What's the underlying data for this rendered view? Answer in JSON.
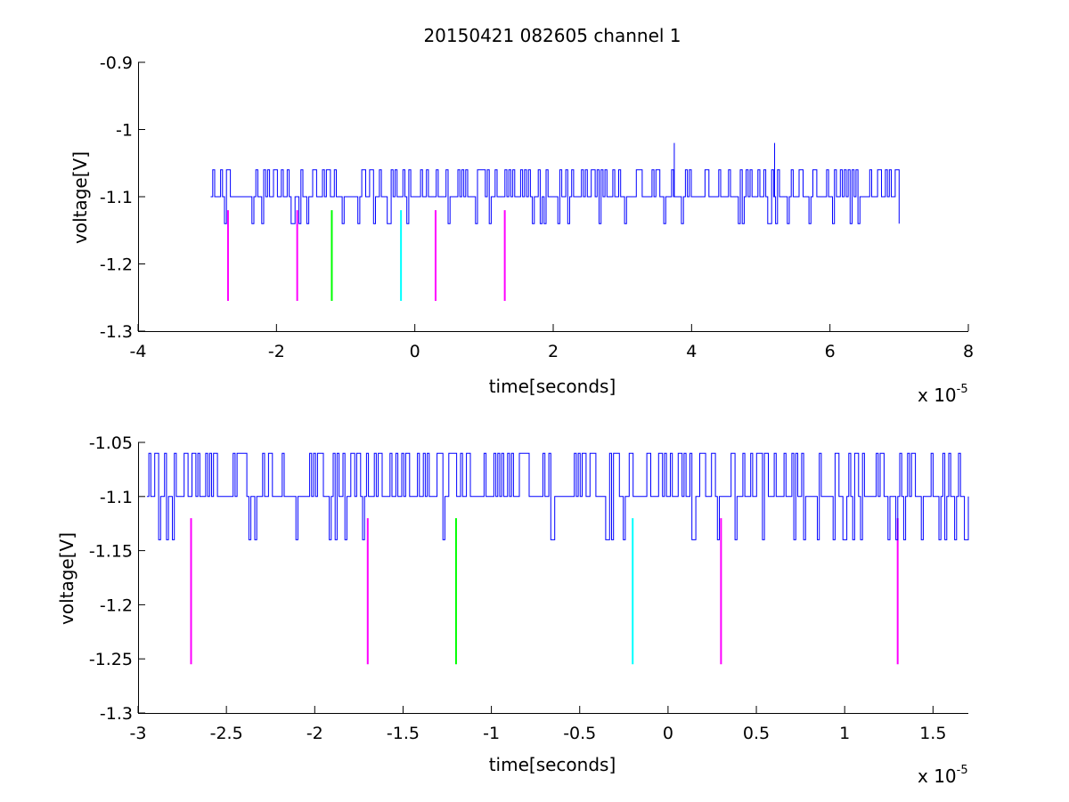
{
  "chart_data": [
    {
      "type": "line",
      "title": "20150421 082605 channel 1",
      "xlabel": "time[seconds]",
      "ylabel": "voltage[V]",
      "x_multiplier_label": "x 10",
      "x_multiplier_exponent": "-5",
      "xlim": [
        -4,
        8
      ],
      "ylim": [
        -1.3,
        -0.9
      ],
      "x_ticks": [
        -4,
        -2,
        0,
        2,
        4,
        6,
        8
      ],
      "x_tick_labels": [
        "-4",
        "-2",
        "0",
        "2",
        "4",
        "6",
        "8"
      ],
      "y_ticks": [
        -1.3,
        -1.2,
        -1.1,
        -1.0,
        -0.9
      ],
      "y_tick_labels": [
        "-1.3",
        "-1.2",
        "-1.1",
        "-1",
        "-0.9"
      ],
      "grid": false,
      "series": [
        {
          "kind": "signal",
          "color": "#0000ff",
          "x_range": [
            -2.95,
            7.0
          ],
          "baseline": -1.1,
          "levels": [
            -1.14,
            -1.1,
            -1.06,
            -1.02
          ],
          "seed": 7,
          "spikes": [
            {
              "x": 3.75,
              "y": -1.02
            },
            {
              "x": 5.2,
              "y": -1.02
            }
          ]
        }
      ],
      "markers": [
        {
          "x": -2.7,
          "y_top": -1.12,
          "y_bottom": -1.255,
          "color": "#ff00ff"
        },
        {
          "x": -1.7,
          "y_top": -1.12,
          "y_bottom": -1.255,
          "color": "#ff00ff"
        },
        {
          "x": -1.2,
          "y_top": -1.12,
          "y_bottom": -1.255,
          "color": "#00ff00"
        },
        {
          "x": -0.2,
          "y_top": -1.12,
          "y_bottom": -1.255,
          "color": "#00ffff"
        },
        {
          "x": 0.3,
          "y_top": -1.12,
          "y_bottom": -1.255,
          "color": "#ff00ff"
        },
        {
          "x": 1.3,
          "y_top": -1.12,
          "y_bottom": -1.255,
          "color": "#ff00ff"
        }
      ]
    },
    {
      "type": "line",
      "title": "",
      "xlabel": "time[seconds]",
      "ylabel": "voltage[V]",
      "x_multiplier_label": "x 10",
      "x_multiplier_exponent": "-5",
      "xlim": [
        -3.0,
        1.7
      ],
      "ylim": [
        -1.3,
        -1.05
      ],
      "x_ticks": [
        -3,
        -2.5,
        -2,
        -1.5,
        -1,
        -0.5,
        0,
        0.5,
        1,
        1.5
      ],
      "x_tick_labels": [
        "-3",
        "-2.5",
        "-2",
        "-1.5",
        "-1",
        "-0.5",
        "0",
        "0.5",
        "1",
        "1.5"
      ],
      "y_ticks": [
        -1.3,
        -1.25,
        -1.2,
        -1.15,
        -1.1,
        -1.05
      ],
      "y_tick_labels": [
        "-1.3",
        "-1.25",
        "-1.2",
        "-1.15",
        "-1.1",
        "-1.05"
      ],
      "grid": false,
      "series": [
        {
          "kind": "signal",
          "color": "#0000ff",
          "x_range": [
            -2.95,
            1.7
          ],
          "baseline": -1.1,
          "levels": [
            -1.14,
            -1.1,
            -1.06
          ],
          "seed": 13,
          "spikes": []
        }
      ],
      "markers": [
        {
          "x": -2.7,
          "y_top": -1.12,
          "y_bottom": -1.255,
          "color": "#ff00ff"
        },
        {
          "x": -1.7,
          "y_top": -1.12,
          "y_bottom": -1.255,
          "color": "#ff00ff"
        },
        {
          "x": -1.2,
          "y_top": -1.12,
          "y_bottom": -1.255,
          "color": "#00ff00"
        },
        {
          "x": -0.2,
          "y_top": -1.12,
          "y_bottom": -1.255,
          "color": "#00ffff"
        },
        {
          "x": 0.3,
          "y_top": -1.12,
          "y_bottom": -1.255,
          "color": "#ff00ff"
        },
        {
          "x": 1.3,
          "y_top": -1.12,
          "y_bottom": -1.255,
          "color": "#ff00ff"
        }
      ]
    }
  ]
}
